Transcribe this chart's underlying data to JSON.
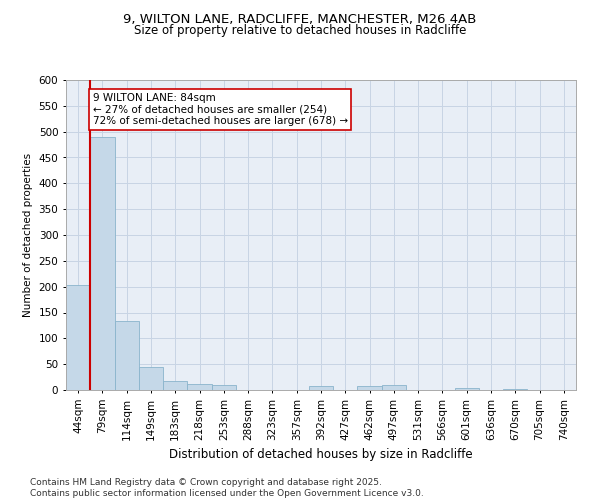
{
  "title_line1": "9, WILTON LANE, RADCLIFFE, MANCHESTER, M26 4AB",
  "title_line2": "Size of property relative to detached houses in Radcliffe",
  "xlabel": "Distribution of detached houses by size in Radcliffe",
  "ylabel": "Number of detached properties",
  "footer_line1": "Contains HM Land Registry data © Crown copyright and database right 2025.",
  "footer_line2": "Contains public sector information licensed under the Open Government Licence v3.0.",
  "bins": [
    "44sqm",
    "79sqm",
    "114sqm",
    "149sqm",
    "183sqm",
    "218sqm",
    "253sqm",
    "288sqm",
    "323sqm",
    "357sqm",
    "392sqm",
    "427sqm",
    "462sqm",
    "497sqm",
    "531sqm",
    "566sqm",
    "601sqm",
    "636sqm",
    "670sqm",
    "705sqm",
    "740sqm"
  ],
  "values": [
    203,
    490,
    133,
    45,
    18,
    11,
    10,
    0,
    0,
    0,
    8,
    0,
    8,
    9,
    0,
    0,
    3,
    0,
    2,
    0,
    0
  ],
  "bar_color": "#c5d8e8",
  "bar_edge_color": "#8ab4cc",
  "grid_color": "#c8d4e4",
  "bg_color": "#e8eef6",
  "vline_color": "#cc0000",
  "annotation_text": "9 WILTON LANE: 84sqm\n← 27% of detached houses are smaller (254)\n72% of semi-detached houses are larger (678) →",
  "annotation_box_facecolor": "#ffffff",
  "annotation_box_edgecolor": "#cc0000",
  "ylim": [
    0,
    600
  ],
  "yticks": [
    0,
    50,
    100,
    150,
    200,
    250,
    300,
    350,
    400,
    450,
    500,
    550,
    600
  ],
  "title1_fontsize": 9.5,
  "title2_fontsize": 8.5,
  "xlabel_fontsize": 8.5,
  "ylabel_fontsize": 7.5,
  "tick_fontsize": 7.5,
  "footer_fontsize": 6.5,
  "annotation_fontsize": 7.5
}
